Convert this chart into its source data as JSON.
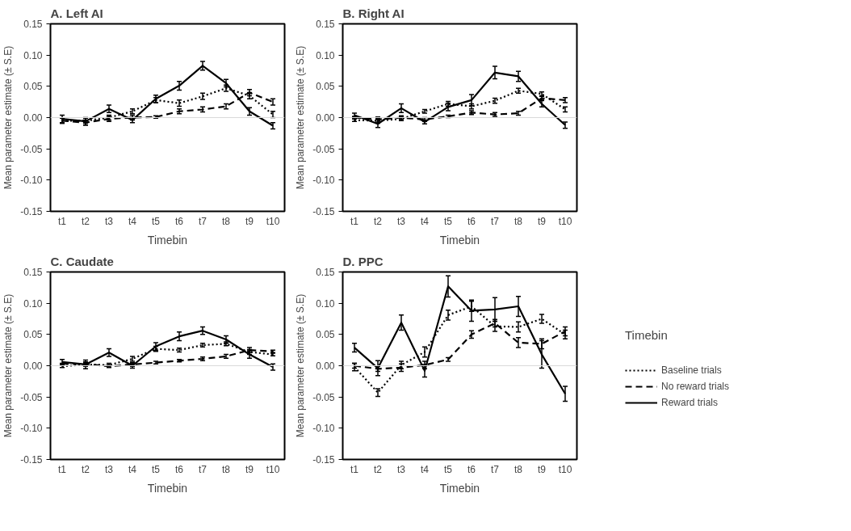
{
  "chart_data": [
    {
      "type": "line",
      "title": "A. Left AI",
      "xlabel": "Timebin",
      "ylabel": "Mean parameter estimate (± S.E)",
      "categories": [
        "t1",
        "t2",
        "t3",
        "t4",
        "t5",
        "t6",
        "t7",
        "t8",
        "t9",
        "t10"
      ],
      "ylim": [
        -0.15,
        0.15
      ],
      "yticks": [
        {
          "value": -0.15,
          "label": "-0.15"
        },
        {
          "value": -0.1,
          "label": "-0.10"
        },
        {
          "value": -0.05,
          "label": "-0.05"
        },
        {
          "value": 0,
          "label": "0.00"
        },
        {
          "value": 0.05,
          "label": "0.05"
        },
        {
          "value": 0.1,
          "label": "0.10"
        },
        {
          "value": 0.15,
          "label": "0.15"
        }
      ],
      "grid": false,
      "marker": "none",
      "ref_lines": [
        {
          "axis": "y",
          "value": 0,
          "color": "#d9d9d9"
        }
      ],
      "series": [
        {
          "color": "#000000",
          "line_style": "dotted",
          "values": [
            -0.005,
            -0.005,
            0.0,
            0.01,
            0.028,
            0.023,
            0.034,
            0.047,
            0.035,
            0.005
          ],
          "errors": [
            0.004,
            0.004,
            0.004,
            0.004,
            0.004,
            0.005,
            0.005,
            0.005,
            0.005,
            0.005
          ]
        },
        {
          "color": "#000000",
          "line_style": "dashed",
          "values": [
            -0.005,
            -0.008,
            -0.002,
            0.0,
            0.001,
            0.01,
            0.013,
            0.018,
            0.04,
            0.025
          ],
          "errors": [
            0.004,
            0.004,
            0.004,
            0.004,
            0.002,
            0.004,
            0.004,
            0.004,
            0.005,
            0.005
          ]
        },
        {
          "color": "#000000",
          "line_style": "solid",
          "values": [
            -0.002,
            -0.006,
            0.014,
            -0.004,
            0.03,
            0.051,
            0.083,
            0.055,
            0.01,
            -0.013
          ],
          "errors": [
            0.006,
            0.006,
            0.006,
            0.004,
            0.006,
            0.007,
            0.007,
            0.006,
            0.006,
            0.005
          ]
        }
      ]
    },
    {
      "type": "line",
      "title": "B. Right AI",
      "xlabel": "Timebin",
      "ylabel": "Mean parameter estimate (± S.E)",
      "categories": [
        "t1",
        "t2",
        "t3",
        "t4",
        "t5",
        "t6",
        "t7",
        "t8",
        "t9",
        "t10"
      ],
      "ylim": [
        -0.15,
        0.15
      ],
      "yticks": [
        {
          "value": -0.15,
          "label": "-0.15"
        },
        {
          "value": -0.1,
          "label": "-0.10"
        },
        {
          "value": -0.05,
          "label": "-0.05"
        },
        {
          "value": 0,
          "label": "0.00"
        },
        {
          "value": 0.05,
          "label": "0.05"
        },
        {
          "value": 0.1,
          "label": "0.10"
        },
        {
          "value": 0.15,
          "label": "0.15"
        }
      ],
      "grid": false,
      "marker": "none",
      "ref_lines": [
        {
          "axis": "y",
          "value": 0,
          "color": "#d9d9d9"
        }
      ],
      "series": [
        {
          "color": "#000000",
          "line_style": "dotted",
          "values": [
            -0.004,
            -0.005,
            -0.002,
            0.01,
            0.022,
            0.018,
            0.027,
            0.043,
            0.038,
            0.013
          ],
          "errors": [
            0.002,
            0.004,
            0.003,
            0.003,
            0.004,
            0.004,
            0.004,
            0.004,
            0.003,
            0.004
          ]
        },
        {
          "color": "#000000",
          "line_style": "dashed",
          "values": [
            0.0,
            -0.003,
            0.0,
            -0.003,
            0.002,
            0.008,
            0.005,
            0.007,
            0.031,
            0.028
          ],
          "errors": [
            0.002,
            0.004,
            0.003,
            0.003,
            0.002,
            0.003,
            0.003,
            0.003,
            0.003,
            0.004
          ]
        },
        {
          "color": "#000000",
          "line_style": "solid",
          "values": [
            0.004,
            -0.01,
            0.015,
            -0.007,
            0.017,
            0.028,
            0.072,
            0.066,
            0.022,
            -0.012
          ],
          "errors": [
            0.003,
            0.006,
            0.007,
            0.003,
            0.006,
            0.009,
            0.01,
            0.008,
            0.005,
            0.005
          ]
        }
      ]
    },
    {
      "type": "line",
      "title": "C. Caudate",
      "xlabel": "Timebin",
      "ylabel": "Mean parameter estimate (± S.E)",
      "categories": [
        "t1",
        "t2",
        "t3",
        "t4",
        "t5",
        "t6",
        "t7",
        "t8",
        "t9",
        "t10"
      ],
      "ylim": [
        -0.15,
        0.15
      ],
      "yticks": [
        {
          "value": -0.15,
          "label": "-0.15"
        },
        {
          "value": -0.1,
          "label": "-0.10"
        },
        {
          "value": -0.05,
          "label": "-0.05"
        },
        {
          "value": 0,
          "label": "0.00"
        },
        {
          "value": 0.05,
          "label": "0.05"
        },
        {
          "value": 0.1,
          "label": "0.10"
        },
        {
          "value": 0.15,
          "label": "0.15"
        }
      ],
      "grid": false,
      "marker": "none",
      "ref_lines": [
        {
          "axis": "y",
          "value": 0,
          "color": "#d9d9d9"
        }
      ],
      "series": [
        {
          "color": "#000000",
          "line_style": "dotted",
          "values": [
            -0.001,
            0.002,
            0.001,
            0.011,
            0.027,
            0.025,
            0.033,
            0.035,
            0.022,
            0.018
          ],
          "errors": [
            0.002,
            0.003,
            0.003,
            0.004,
            0.004,
            0.003,
            0.003,
            0.003,
            0.004,
            0.002
          ]
        },
        {
          "color": "#000000",
          "line_style": "dashed",
          "values": [
            0.003,
            0.003,
            -0.001,
            0.002,
            0.005,
            0.008,
            0.011,
            0.015,
            0.025,
            0.023
          ],
          "errors": [
            0.001,
            0.003,
            0.002,
            0.003,
            0.002,
            0.002,
            0.003,
            0.003,
            0.004,
            0.002
          ]
        },
        {
          "color": "#000000",
          "line_style": "solid",
          "values": [
            0.006,
            0.002,
            0.021,
            0.0,
            0.031,
            0.047,
            0.056,
            0.042,
            0.018,
            -0.002
          ],
          "errors": [
            0.004,
            0.007,
            0.006,
            0.004,
            0.006,
            0.007,
            0.006,
            0.006,
            0.006,
            0.005
          ]
        }
      ]
    },
    {
      "type": "line",
      "title": "D. PPC",
      "xlabel": "Timebin",
      "ylabel": "Mean parameter estimate (± S.E)",
      "legend_title": "Timebin",
      "legend": "bottom right",
      "categories": [
        "t1",
        "t2",
        "t3",
        "t4",
        "t5",
        "t6",
        "t7",
        "t8",
        "t9",
        "t10"
      ],
      "ylim": [
        -0.15,
        0.15
      ],
      "yticks": [
        {
          "value": -0.15,
          "label": "-0.15"
        },
        {
          "value": -0.1,
          "label": "-0.10"
        },
        {
          "value": -0.05,
          "label": "-0.05"
        },
        {
          "value": 0,
          "label": "0.00"
        },
        {
          "value": 0.05,
          "label": "0.05"
        },
        {
          "value": 0.1,
          "label": "0.10"
        },
        {
          "value": 0.15,
          "label": "0.15"
        }
      ],
      "grid": false,
      "marker": "none",
      "ref_lines": [
        {
          "axis": "y",
          "value": 0,
          "color": "#d9d9d9"
        }
      ],
      "series": [
        {
          "name": "Baseline trials",
          "color": "#000000",
          "line_style": "dotted",
          "values": [
            -0.002,
            -0.043,
            0.001,
            0.022,
            0.081,
            0.095,
            0.063,
            0.062,
            0.075,
            0.05
          ],
          "errors": [
            0.006,
            0.006,
            0.006,
            0.008,
            0.008,
            0.008,
            0.008,
            0.008,
            0.007,
            0.007
          ]
        },
        {
          "name": "No reward trials",
          "color": "#000000",
          "line_style": "dashed",
          "values": [
            0.0,
            -0.005,
            -0.003,
            0.001,
            0.01,
            0.05,
            0.068,
            0.037,
            0.035,
            0.055
          ],
          "errors": [
            0.004,
            0.004,
            0.006,
            0.006,
            0.003,
            0.006,
            0.006,
            0.008,
            0.008,
            0.007
          ]
        },
        {
          "name": "Reward trials",
          "color": "#000000",
          "line_style": "solid",
          "values": [
            0.029,
            -0.004,
            0.069,
            -0.008,
            0.127,
            0.088,
            0.09,
            0.095,
            0.018,
            -0.045
          ],
          "errors": [
            0.007,
            0.012,
            0.012,
            0.01,
            0.017,
            0.017,
            0.019,
            0.016,
            0.022,
            0.012
          ]
        }
      ]
    }
  ]
}
